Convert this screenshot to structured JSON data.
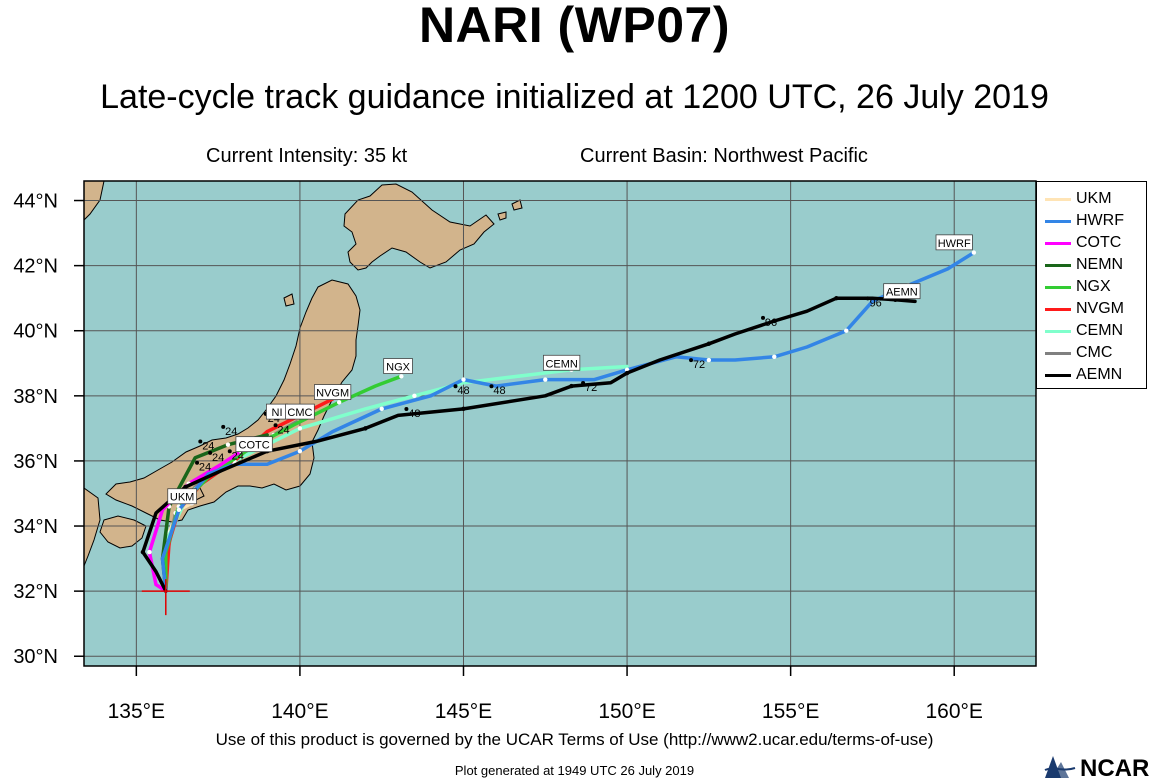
{
  "header": {
    "title": "NARI (WP07)",
    "subtitle": "Late-cycle track guidance initialized at 1200 UTC, 26 July 2019",
    "intensity": "Current Intensity: 35 kt",
    "basin": "Current Basin: Northwest Pacific"
  },
  "map": {
    "projection": "lat-lon",
    "lon_range": [
      133.4,
      162.5
    ],
    "lat_range": [
      29.7,
      44.6
    ],
    "lon_ticks": [
      135,
      140,
      145,
      150,
      155,
      160
    ],
    "lat_ticks": [
      30,
      32,
      34,
      36,
      38,
      40,
      42,
      44
    ],
    "lon_tick_labels": [
      "135°E",
      "140°E",
      "145°E",
      "150°E",
      "155°E",
      "160°E"
    ],
    "lat_tick_labels": [
      "30°N",
      "32°N",
      "34°N",
      "36°N",
      "38°N",
      "40°N",
      "42°N",
      "44°N"
    ],
    "ocean_color": "#99cccc",
    "land_color": "#d2b48c",
    "grid": true,
    "current_position": {
      "lon": 135.9,
      "lat": 32.0
    }
  },
  "legend": [
    {
      "name": "UKM",
      "color": "#ffe4b5"
    },
    {
      "name": "HWRF",
      "color": "#3385e6"
    },
    {
      "name": "COTC",
      "color": "#ff00ff"
    },
    {
      "name": "NEMN",
      "color": "#1a661a"
    },
    {
      "name": "NGX",
      "color": "#33cc33"
    },
    {
      "name": "NVGM",
      "color": "#ff1a1a"
    },
    {
      "name": "CEMN",
      "color": "#80ffcc"
    },
    {
      "name": "CMC",
      "color": "#808080"
    },
    {
      "name": "AEMN",
      "color": "#000000"
    }
  ],
  "tracks": [
    {
      "name": "UKM",
      "color": "#ffe4b5",
      "label": "UKM",
      "points": [
        [
          135.9,
          32.0
        ],
        [
          135.9,
          33.0
        ],
        [
          136.0,
          33.8
        ],
        [
          136.3,
          34.5
        ],
        [
          136.7,
          34.7
        ]
      ]
    },
    {
      "name": "CMC",
      "color": "#808080",
      "label": "CMC",
      "points": [
        [
          135.9,
          32.0
        ],
        [
          135.95,
          33.2
        ],
        [
          136.2,
          34.4
        ],
        [
          136.8,
          35.2
        ],
        [
          137.6,
          35.8
        ],
        [
          138.5,
          36.3
        ],
        [
          139.2,
          36.8
        ],
        [
          139.9,
          37.2
        ]
      ]
    },
    {
      "name": "CEMN",
      "color": "#80ffcc",
      "label": "CEMN",
      "points": [
        [
          135.9,
          32.0
        ],
        [
          135.9,
          33.5
        ],
        [
          136.6,
          35.0
        ],
        [
          138.0,
          36.0
        ],
        [
          140.0,
          37.0
        ],
        [
          142.0,
          37.6
        ],
        [
          143.5,
          38.0
        ],
        [
          145.0,
          38.4
        ],
        [
          148.3,
          38.8
        ],
        [
          150.0,
          38.9
        ]
      ]
    },
    {
      "name": "NVGM",
      "color": "#ff1a1a",
      "label": "NVGM",
      "points": [
        [
          135.9,
          32.0
        ],
        [
          136.0,
          33.5
        ],
        [
          136.3,
          34.5
        ],
        [
          137.0,
          35.3
        ],
        [
          138.0,
          36.0
        ],
        [
          139.0,
          36.9
        ],
        [
          140.0,
          37.4
        ],
        [
          141.0,
          37.9
        ]
      ]
    },
    {
      "name": "NGX",
      "color": "#33cc33",
      "label": "NGX",
      "points": [
        [
          135.9,
          32.0
        ],
        [
          135.9,
          33.2
        ],
        [
          136.3,
          34.6
        ],
        [
          137.3,
          35.6
        ],
        [
          138.5,
          36.4
        ],
        [
          139.8,
          37.1
        ],
        [
          141.2,
          37.8
        ],
        [
          142.3,
          38.3
        ],
        [
          143.1,
          38.6
        ]
      ]
    },
    {
      "name": "NEMN",
      "color": "#1a661a",
      "label": "",
      "points": [
        [
          135.9,
          32.0
        ],
        [
          135.8,
          33.0
        ],
        [
          136.0,
          34.6
        ],
        [
          136.8,
          36.1
        ],
        [
          137.8,
          36.5
        ],
        [
          139.0,
          36.8
        ]
      ]
    },
    {
      "name": "COTC",
      "color": "#ff00ff",
      "label": "COTC",
      "points": [
        [
          135.9,
          32.0
        ],
        [
          135.6,
          32.2
        ],
        [
          135.4,
          33.2
        ],
        [
          135.8,
          34.5
        ],
        [
          136.6,
          35.3
        ],
        [
          137.6,
          35.9
        ],
        [
          138.2,
          36.3
        ]
      ]
    },
    {
      "name": "HWRF",
      "color": "#3385e6",
      "label": "HWRF",
      "points": [
        [
          135.9,
          32.0
        ],
        [
          135.8,
          33.0
        ],
        [
          136.3,
          34.5
        ],
        [
          137.2,
          35.6
        ],
        [
          138.0,
          35.9
        ],
        [
          139.0,
          35.9
        ],
        [
          140.0,
          36.3
        ],
        [
          141.0,
          36.9
        ],
        [
          142.5,
          37.6
        ],
        [
          144.0,
          38.0
        ],
        [
          145.0,
          38.5
        ],
        [
          146.0,
          38.3
        ],
        [
          147.5,
          38.5
        ],
        [
          149.0,
          38.5
        ],
        [
          150.0,
          38.8
        ],
        [
          151.5,
          39.2
        ],
        [
          152.5,
          39.1
        ],
        [
          153.3,
          39.1
        ],
        [
          154.5,
          39.2
        ],
        [
          155.5,
          39.5
        ],
        [
          156.7,
          40.0
        ],
        [
          157.5,
          40.9
        ],
        [
          158.6,
          41.4
        ],
        [
          159.8,
          41.9
        ],
        [
          160.6,
          42.4
        ]
      ]
    },
    {
      "name": "AEMN",
      "color": "#000000",
      "label": "AEMN",
      "points": [
        [
          135.9,
          32.0
        ],
        [
          135.6,
          32.6
        ],
        [
          135.2,
          33.2
        ],
        [
          135.6,
          34.4
        ],
        [
          136.5,
          35.2
        ],
        [
          137.6,
          35.7
        ],
        [
          139.0,
          36.3
        ],
        [
          140.5,
          36.6
        ],
        [
          142.0,
          37.0
        ],
        [
          143.0,
          37.4
        ],
        [
          145.0,
          37.6
        ],
        [
          147.5,
          38.0
        ],
        [
          148.3,
          38.3
        ],
        [
          149.5,
          38.4
        ],
        [
          150.0,
          38.7
        ],
        [
          151.0,
          39.1
        ],
        [
          152.5,
          39.6
        ],
        [
          153.3,
          39.9
        ],
        [
          154.5,
          40.3
        ],
        [
          155.5,
          40.6
        ],
        [
          156.4,
          41.0
        ],
        [
          157.5,
          41.0
        ],
        [
          158.2,
          40.95
        ],
        [
          158.8,
          40.9
        ]
      ]
    }
  ],
  "track_labels": [
    {
      "text": "HWRF",
      "lon": 160.0,
      "lat": 42.7
    },
    {
      "text": "AEMN",
      "lon": 158.4,
      "lat": 41.2
    },
    {
      "text": "CEMN",
      "lon": 148.0,
      "lat": 39.0
    },
    {
      "text": "NGX",
      "lon": 143.0,
      "lat": 38.9
    },
    {
      "text": "NVGM",
      "lon": 141.0,
      "lat": 38.1
    },
    {
      "text": "NI",
      "lon": 139.3,
      "lat": 37.5
    },
    {
      "text": "CMC",
      "lon": 140.0,
      "lat": 37.5
    },
    {
      "text": "COTC",
      "lon": 138.6,
      "lat": 36.5
    },
    {
      "text": "UKM",
      "lon": 136.4,
      "lat": 34.9
    }
  ],
  "forecast_hour_labels": [
    {
      "text": "96",
      "lon": 157.6,
      "lat": 40.75
    },
    {
      "text": "96",
      "lon": 154.4,
      "lat": 40.15
    },
    {
      "text": "72",
      "lon": 152.2,
      "lat": 38.85
    },
    {
      "text": "72",
      "lon": 148.9,
      "lat": 38.15
    },
    {
      "text": "48",
      "lon": 145.0,
      "lat": 38.05
    },
    {
      "text": "48",
      "lon": 146.1,
      "lat": 38.05
    },
    {
      "text": "48",
      "lon": 143.5,
      "lat": 37.35
    },
    {
      "text": "24",
      "lon": 139.2,
      "lat": 37.2
    },
    {
      "text": "24",
      "lon": 139.5,
      "lat": 36.85
    },
    {
      "text": "24",
      "lon": 137.2,
      "lat": 36.35
    },
    {
      "text": "24",
      "lon": 137.9,
      "lat": 36.8
    },
    {
      "text": "24",
      "lon": 137.5,
      "lat": 36.0
    },
    {
      "text": "24",
      "lon": 138.1,
      "lat": 36.05
    },
    {
      "text": "24",
      "lon": 137.1,
      "lat": 35.7
    }
  ],
  "footer": {
    "terms": "Use of this product is governed by the UCAR Terms of Use (http://www2.ucar.edu/terms-of-use)",
    "generated": "Plot generated at 1949 UTC   26 July 2019",
    "logo_text": "NCAR"
  }
}
